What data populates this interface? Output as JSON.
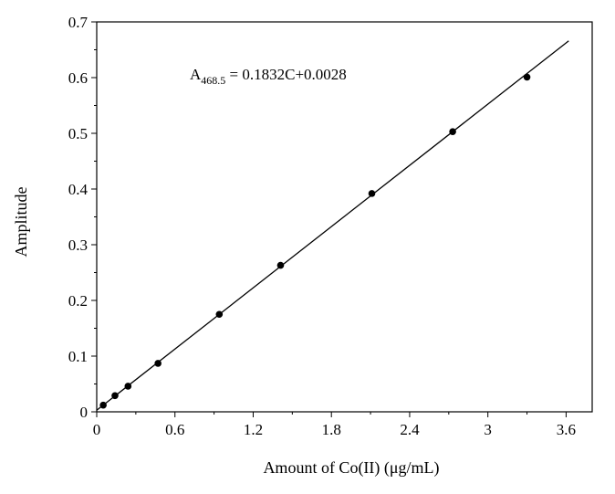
{
  "chart_data": {
    "type": "scatter",
    "title": "",
    "xlabel": "Amount of Co(II) (μg/mL)",
    "ylabel": "Amplitude",
    "xlim": [
      0,
      3.8
    ],
    "ylim": [
      0,
      0.7
    ],
    "x_ticks": [
      0,
      0.6,
      1.2,
      1.8,
      2.4,
      3,
      3.6
    ],
    "x_tick_labels": [
      "0",
      "0.6",
      "1.2",
      "1.8",
      "2.4",
      "3",
      "3.6"
    ],
    "y_ticks": [
      0,
      0.1,
      0.2,
      0.3,
      0.4,
      0.5,
      0.6,
      0.7
    ],
    "y_tick_labels": [
      "0",
      "0.1",
      "0.2",
      "0.3",
      "0.4",
      "0.5",
      "0.6",
      "0.7"
    ],
    "grid": false,
    "legend": "none",
    "annotation": {
      "symbol": "A",
      "subscript": "468.5",
      "rest": " = 0.1832C+0.0028"
    },
    "fit": {
      "slope": 0.1832,
      "intercept": 0.0028,
      "x_range": [
        0,
        3.62
      ]
    },
    "series": [
      {
        "x": [
          0.05,
          0.14,
          0.24,
          0.47,
          0.94,
          1.41,
          2.11,
          2.73,
          3.3
        ],
        "y": [
          0.012,
          0.029,
          0.046,
          0.087,
          0.175,
          0.263,
          0.392,
          0.503,
          0.601
        ]
      }
    ]
  }
}
